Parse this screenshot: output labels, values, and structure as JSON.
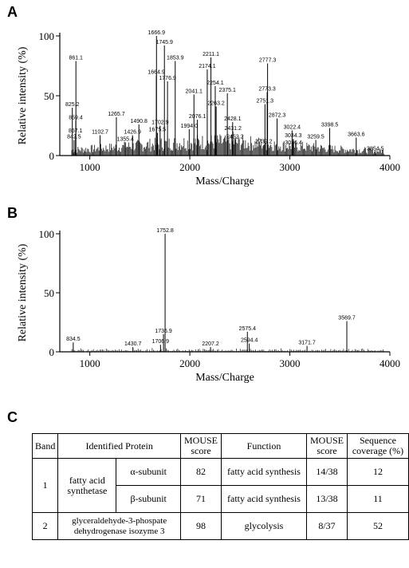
{
  "panel_labels": {
    "a": "A",
    "b": "B",
    "c": "C"
  },
  "chart_data": [
    {
      "type": "bar",
      "panel": "A",
      "xlabel": "Mass/Charge",
      "ylabel": "Relative intensity  (%)",
      "xlim": [
        700,
        4000
      ],
      "ylim": [
        0,
        100
      ],
      "xticks": [
        1000,
        2000,
        3000,
        4000
      ],
      "yticks": [
        0,
        50,
        100
      ],
      "peaks": [
        {
          "x": 842.5,
          "y": 13,
          "label": "842.5"
        },
        {
          "x": 857.1,
          "y": 18,
          "label": "857.1"
        },
        {
          "x": 859.4,
          "y": 29,
          "label": "859.4"
        },
        {
          "x": 825.2,
          "y": 40,
          "label": "825.2"
        },
        {
          "x": 861.1,
          "y": 79,
          "label": "861.1"
        },
        {
          "x": 1102.7,
          "y": 17,
          "label": "1102.7"
        },
        {
          "x": 1265.7,
          "y": 32,
          "label": "1265.7"
        },
        {
          "x": 1355.4,
          "y": 11,
          "label": "1355.4"
        },
        {
          "x": 1426.9,
          "y": 17,
          "label": "1426.9"
        },
        {
          "x": 1490.8,
          "y": 26,
          "label": "1490.8"
        },
        {
          "x": 1675.5,
          "y": 19,
          "label": "1675.5"
        },
        {
          "x": 1664.9,
          "y": 67,
          "label": "1664.9"
        },
        {
          "x": 1666.9,
          "y": 100,
          "label": "1666.9"
        },
        {
          "x": 1702.9,
          "y": 25,
          "label": "1702.9"
        },
        {
          "x": 1745.9,
          "y": 92,
          "label": "1745.9"
        },
        {
          "x": 1776.9,
          "y": 62,
          "label": "1776.9"
        },
        {
          "x": 1853.9,
          "y": 79,
          "label": "1853.9"
        },
        {
          "x": 1994.0,
          "y": 22,
          "label": "1994.0"
        },
        {
          "x": 2041.1,
          "y": 51,
          "label": "2041.1"
        },
        {
          "x": 2076.1,
          "y": 30,
          "label": "2076.1"
        },
        {
          "x": 2174.1,
          "y": 72,
          "label": "2174.1"
        },
        {
          "x": 2211.1,
          "y": 82,
          "label": "2211.1"
        },
        {
          "x": 2254.1,
          "y": 58,
          "label": "2254.1"
        },
        {
          "x": 2263.2,
          "y": 41,
          "label": "2263.2"
        },
        {
          "x": 2375.1,
          "y": 52,
          "label": "2375.1"
        },
        {
          "x": 2428.1,
          "y": 28,
          "label": "2428.1"
        },
        {
          "x": 2431.2,
          "y": 20,
          "label": "2431.2"
        },
        {
          "x": 2452.2,
          "y": 13,
          "label": "2452.2"
        },
        {
          "x": 2739.2,
          "y": 9,
          "label": "2739.2"
        },
        {
          "x": 2751.3,
          "y": 43,
          "label": "2751.3"
        },
        {
          "x": 2773.3,
          "y": 53,
          "label": "2773.3"
        },
        {
          "x": 2777.3,
          "y": 77,
          "label": "2777.3"
        },
        {
          "x": 2872.3,
          "y": 31,
          "label": "2872.3"
        },
        {
          "x": 3022.4,
          "y": 21,
          "label": "3022.4"
        },
        {
          "x": 3034.3,
          "y": 14,
          "label": "3034.3"
        },
        {
          "x": 3036.4,
          "y": 8,
          "label": "3036.4"
        },
        {
          "x": 3259.5,
          "y": 13,
          "label": "3259.5"
        },
        {
          "x": 3398.5,
          "y": 23,
          "label": "3398.5"
        },
        {
          "x": 3663.6,
          "y": 15,
          "label": "3663.6"
        },
        {
          "x": 3854.5,
          "y": 3,
          "label": "3854.5"
        }
      ]
    },
    {
      "type": "bar",
      "panel": "B",
      "xlabel": "Mass/Charge",
      "ylabel": "Relative intensity  (%)",
      "xlim": [
        700,
        4000
      ],
      "ylim": [
        0,
        100
      ],
      "xticks": [
        1000,
        2000,
        3000,
        4000
      ],
      "yticks": [
        0,
        50,
        100
      ],
      "peaks": [
        {
          "x": 834.5,
          "y": 8,
          "label": "834.5"
        },
        {
          "x": 1430.7,
          "y": 4,
          "label": "1430.7"
        },
        {
          "x": 1706.9,
          "y": 6,
          "label": "1706.9"
        },
        {
          "x": 1736.9,
          "y": 15,
          "label": "1736.9"
        },
        {
          "x": 1752.8,
          "y": 100,
          "label": "1752.8"
        },
        {
          "x": 2207.2,
          "y": 4,
          "label": "2207.2"
        },
        {
          "x": 2575.4,
          "y": 17,
          "label": "2575.4"
        },
        {
          "x": 2594.4,
          "y": 7,
          "label": "2594.4"
        },
        {
          "x": 3171.7,
          "y": 5,
          "label": "3171.7"
        },
        {
          "x": 3569.7,
          "y": 26,
          "label": "3569.7"
        }
      ]
    }
  ],
  "table": {
    "headers": {
      "band": "Band",
      "protein": "Identified Protein",
      "mouse_score": "MOUSE score",
      "function": "Function",
      "mouse_score2": "MOUSE score",
      "coverage": "Sequence coverage (%)"
    },
    "rows": [
      {
        "band": "1",
        "protein": "fatty acid synthetase",
        "subunit": "α-subunit",
        "score": "82",
        "function": "fatty acid synthesis",
        "ratio": "14/38",
        "coverage": "12"
      },
      {
        "subunit": "β-subunit",
        "score": "71",
        "function": "fatty acid synthesis",
        "ratio": "13/38",
        "coverage": "11"
      },
      {
        "band": "2",
        "protein": "glyceraldehyde-3-phospate dehydrogenase isozyme 3",
        "score": "98",
        "function": "glycolysis",
        "ratio": "8/37",
        "coverage": "52"
      }
    ]
  }
}
